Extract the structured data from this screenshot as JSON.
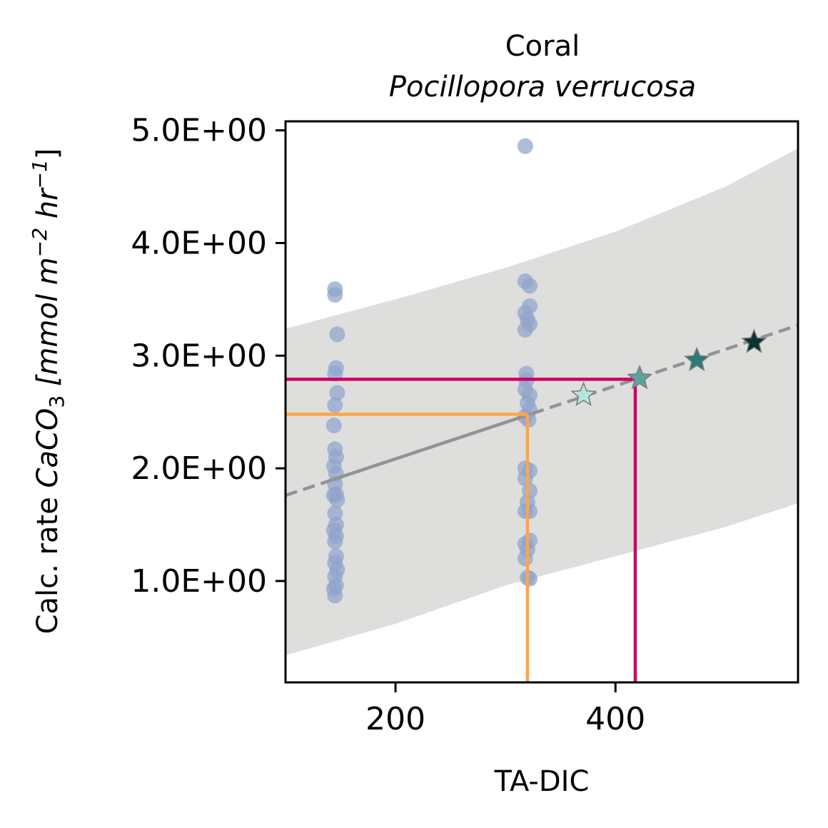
{
  "chart_data": {
    "type": "scatter",
    "title": "Coral",
    "subtitle": "Pocillopora verrucosa",
    "xlabel": "TA-DIC",
    "ylabel_prefix": "Calc. rate ",
    "ylabel_math": "CaCO",
    "ylabel_sub": "3",
    "ylabel_units_a": " [mmol m",
    "ylabel_units_sup1": "−2",
    "ylabel_units_b": " hr",
    "ylabel_units_sup2": "−1",
    "ylabel_units_c": "]",
    "xlim": [
      100,
      566
    ],
    "ylim": [
      0.1,
      5.08
    ],
    "x_ticks": [
      200,
      400
    ],
    "x_tick_labels": [
      "200",
      "400"
    ],
    "y_ticks": [
      1.0,
      2.0,
      3.0,
      4.0,
      5.0
    ],
    "y_tick_labels": [
      "1.0E+00",
      "2.0E+00",
      "3.0E+00",
      "4.0E+00",
      "5.0E+00"
    ],
    "grid": false,
    "legend": "none",
    "colors": {
      "points": "#8fa3cc",
      "confidence_band": "#dededd",
      "fit_line": "#939393",
      "orange_lines": "#ffa545",
      "magenta_lines": "#cc0066",
      "star_1": "#b5e6e0",
      "star_2": "#5fa39c",
      "star_3": "#2e7a7a",
      "star_4": "#0a3333"
    },
    "observations": [
      {
        "x": 145,
        "y": 3.59
      },
      {
        "x": 145,
        "y": 3.54
      },
      {
        "x": 147,
        "y": 3.19
      },
      {
        "x": 146,
        "y": 2.89
      },
      {
        "x": 145,
        "y": 2.84
      },
      {
        "x": 147,
        "y": 2.67
      },
      {
        "x": 145,
        "y": 2.56
      },
      {
        "x": 144,
        "y": 2.38
      },
      {
        "x": 145,
        "y": 2.17
      },
      {
        "x": 146,
        "y": 2.1
      },
      {
        "x": 144,
        "y": 2.02
      },
      {
        "x": 146,
        "y": 1.95
      },
      {
        "x": 145,
        "y": 1.86
      },
      {
        "x": 146,
        "y": 1.77
      },
      {
        "x": 144,
        "y": 1.76
      },
      {
        "x": 147,
        "y": 1.72
      },
      {
        "x": 145,
        "y": 1.6
      },
      {
        "x": 146,
        "y": 1.5
      },
      {
        "x": 144,
        "y": 1.45
      },
      {
        "x": 146,
        "y": 1.4
      },
      {
        "x": 145,
        "y": 1.35
      },
      {
        "x": 146,
        "y": 1.22
      },
      {
        "x": 145,
        "y": 1.16
      },
      {
        "x": 147,
        "y": 1.1
      },
      {
        "x": 145,
        "y": 1.04
      },
      {
        "x": 146,
        "y": 0.96
      },
      {
        "x": 144,
        "y": 0.93
      },
      {
        "x": 145,
        "y": 0.87
      },
      {
        "x": 318,
        "y": 4.86
      },
      {
        "x": 318,
        "y": 3.66
      },
      {
        "x": 322,
        "y": 3.62
      },
      {
        "x": 322,
        "y": 3.44
      },
      {
        "x": 318,
        "y": 3.38
      },
      {
        "x": 320,
        "y": 3.32
      },
      {
        "x": 322,
        "y": 3.28
      },
      {
        "x": 318,
        "y": 3.23
      },
      {
        "x": 319,
        "y": 2.84
      },
      {
        "x": 319,
        "y": 2.78
      },
      {
        "x": 318,
        "y": 2.7
      },
      {
        "x": 322,
        "y": 2.65
      },
      {
        "x": 320,
        "y": 2.58
      },
      {
        "x": 322,
        "y": 2.52
      },
      {
        "x": 318,
        "y": 2.46
      },
      {
        "x": 321,
        "y": 2.43
      },
      {
        "x": 318,
        "y": 2.0
      },
      {
        "x": 322,
        "y": 1.98
      },
      {
        "x": 318,
        "y": 1.91
      },
      {
        "x": 322,
        "y": 1.8
      },
      {
        "x": 320,
        "y": 1.7
      },
      {
        "x": 318,
        "y": 1.62
      },
      {
        "x": 322,
        "y": 1.62
      },
      {
        "x": 322,
        "y": 1.36
      },
      {
        "x": 318,
        "y": 1.33
      },
      {
        "x": 320,
        "y": 1.28
      },
      {
        "x": 318,
        "y": 1.2
      },
      {
        "x": 320,
        "y": 1.03
      },
      {
        "x": 322,
        "y": 1.02
      }
    ],
    "fit_line": {
      "x": [
        100,
        566
      ],
      "y": [
        1.76,
        3.27
      ]
    },
    "fit_solid_range": [
      143,
      323
    ],
    "confidence_band": {
      "x": [
        100,
        200,
        300,
        400,
        500,
        566
      ],
      "upper": [
        3.24,
        3.5,
        3.78,
        4.1,
        4.5,
        4.84
      ],
      "lower": [
        0.34,
        0.62,
        0.96,
        1.22,
        1.48,
        1.69
      ]
    },
    "reference_lines": [
      {
        "name": "orange",
        "x": 320,
        "y": 2.48
      },
      {
        "name": "magenta",
        "x": 418,
        "y": 2.79
      }
    ],
    "stars": [
      {
        "x": 371,
        "y": 2.65
      },
      {
        "x": 422,
        "y": 2.8
      },
      {
        "x": 474,
        "y": 2.96
      },
      {
        "x": 526,
        "y": 3.12
      }
    ]
  }
}
